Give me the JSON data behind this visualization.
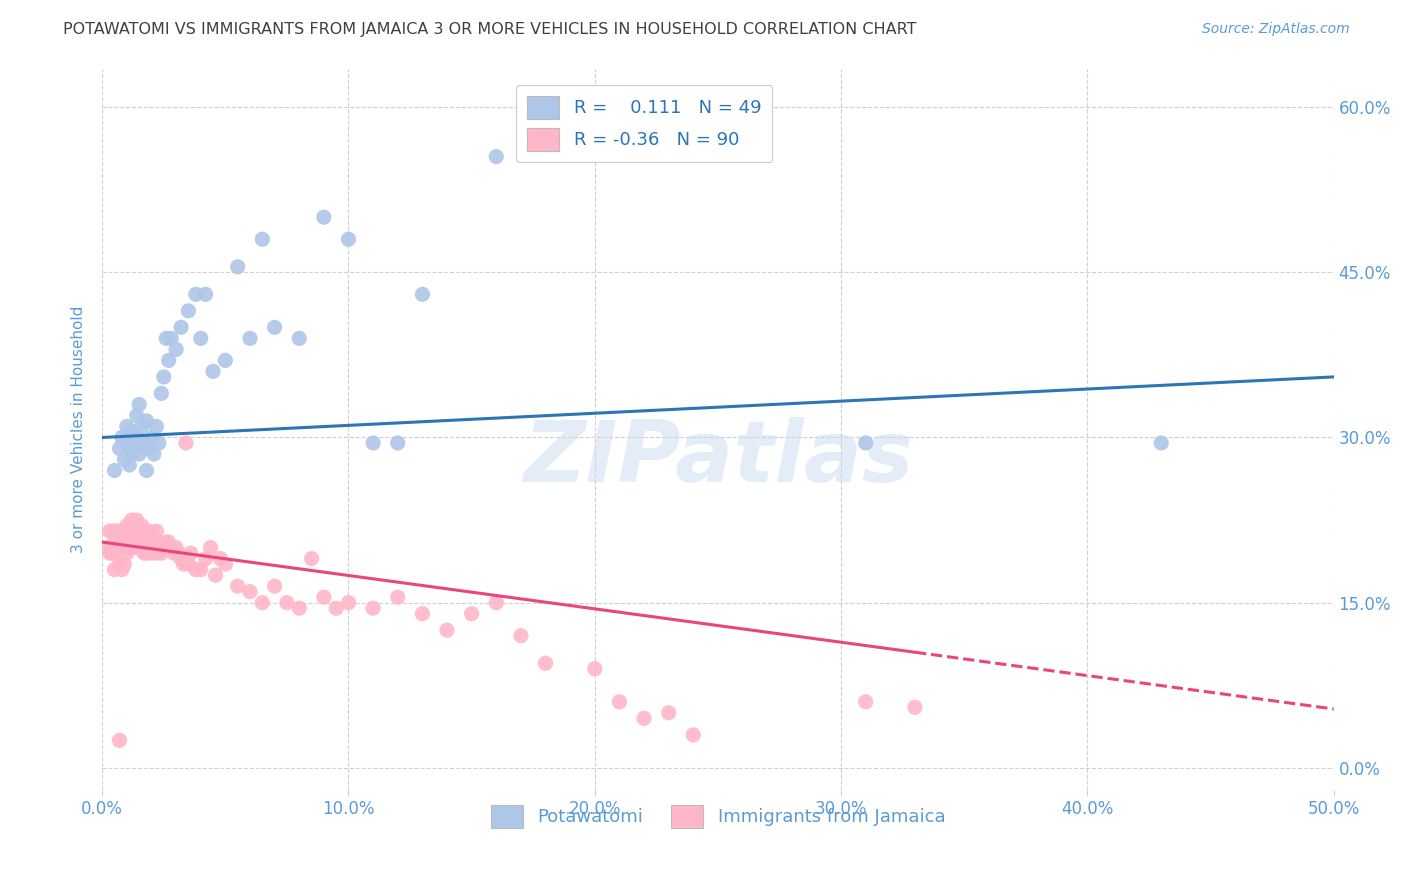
{
  "title": "POTAWATOMI VS IMMIGRANTS FROM JAMAICA 3 OR MORE VEHICLES IN HOUSEHOLD CORRELATION CHART",
  "source": "Source: ZipAtlas.com",
  "xlabel_ticks": [
    "0.0%",
    "10.0%",
    "20.0%",
    "30.0%",
    "40.0%",
    "50.0%"
  ],
  "ylabel_ticks": [
    "0.0%",
    "15.0%",
    "30.0%",
    "45.0%",
    "60.0%"
  ],
  "xmin": 0.0,
  "xmax": 0.5,
  "ymin": -0.02,
  "ymax": 0.635,
  "ylabel": "3 or more Vehicles in Household",
  "legend_label1": "Potawatomi",
  "legend_label2": "Immigrants from Jamaica",
  "R1": 0.111,
  "N1": 49,
  "R2": -0.36,
  "N2": 90,
  "blue_scatter_x": [
    0.005,
    0.007,
    0.008,
    0.009,
    0.01,
    0.01,
    0.011,
    0.012,
    0.012,
    0.013,
    0.014,
    0.014,
    0.015,
    0.015,
    0.016,
    0.017,
    0.018,
    0.018,
    0.019,
    0.02,
    0.021,
    0.022,
    0.023,
    0.024,
    0.025,
    0.026,
    0.027,
    0.028,
    0.03,
    0.032,
    0.035,
    0.038,
    0.04,
    0.042,
    0.045,
    0.05,
    0.055,
    0.06,
    0.065,
    0.07,
    0.08,
    0.09,
    0.1,
    0.11,
    0.12,
    0.13,
    0.16,
    0.31,
    0.43
  ],
  "blue_scatter_y": [
    0.27,
    0.29,
    0.3,
    0.28,
    0.31,
    0.295,
    0.275,
    0.305,
    0.285,
    0.29,
    0.32,
    0.3,
    0.33,
    0.285,
    0.31,
    0.295,
    0.27,
    0.315,
    0.29,
    0.3,
    0.285,
    0.31,
    0.295,
    0.34,
    0.355,
    0.39,
    0.37,
    0.39,
    0.38,
    0.4,
    0.415,
    0.43,
    0.39,
    0.43,
    0.36,
    0.37,
    0.455,
    0.39,
    0.48,
    0.4,
    0.39,
    0.5,
    0.48,
    0.295,
    0.295,
    0.43,
    0.555,
    0.295,
    0.295
  ],
  "pink_scatter_x": [
    0.002,
    0.003,
    0.003,
    0.004,
    0.004,
    0.005,
    0.005,
    0.005,
    0.006,
    0.006,
    0.007,
    0.007,
    0.007,
    0.008,
    0.008,
    0.008,
    0.009,
    0.009,
    0.01,
    0.01,
    0.01,
    0.011,
    0.011,
    0.012,
    0.012,
    0.013,
    0.013,
    0.014,
    0.014,
    0.015,
    0.015,
    0.016,
    0.016,
    0.017,
    0.017,
    0.018,
    0.018,
    0.019,
    0.019,
    0.02,
    0.02,
    0.021,
    0.022,
    0.022,
    0.023,
    0.024,
    0.025,
    0.026,
    0.027,
    0.028,
    0.029,
    0.03,
    0.031,
    0.032,
    0.033,
    0.034,
    0.035,
    0.036,
    0.038,
    0.04,
    0.042,
    0.044,
    0.046,
    0.048,
    0.05,
    0.055,
    0.06,
    0.065,
    0.07,
    0.075,
    0.08,
    0.085,
    0.09,
    0.095,
    0.1,
    0.11,
    0.12,
    0.13,
    0.14,
    0.15,
    0.16,
    0.17,
    0.18,
    0.2,
    0.21,
    0.22,
    0.23,
    0.24,
    0.31,
    0.33
  ],
  "pink_scatter_y": [
    0.2,
    0.195,
    0.215,
    0.195,
    0.215,
    0.18,
    0.205,
    0.215,
    0.195,
    0.215,
    0.025,
    0.185,
    0.2,
    0.18,
    0.2,
    0.215,
    0.185,
    0.21,
    0.195,
    0.21,
    0.22,
    0.2,
    0.215,
    0.215,
    0.225,
    0.21,
    0.215,
    0.2,
    0.225,
    0.2,
    0.21,
    0.22,
    0.21,
    0.195,
    0.215,
    0.195,
    0.21,
    0.2,
    0.215,
    0.195,
    0.205,
    0.2,
    0.195,
    0.215,
    0.205,
    0.195,
    0.2,
    0.205,
    0.205,
    0.2,
    0.195,
    0.2,
    0.195,
    0.19,
    0.185,
    0.295,
    0.185,
    0.195,
    0.18,
    0.18,
    0.19,
    0.2,
    0.175,
    0.19,
    0.185,
    0.165,
    0.16,
    0.15,
    0.165,
    0.15,
    0.145,
    0.19,
    0.155,
    0.145,
    0.15,
    0.145,
    0.155,
    0.14,
    0.125,
    0.14,
    0.15,
    0.12,
    0.095,
    0.09,
    0.06,
    0.045,
    0.05,
    0.03,
    0.06,
    0.055
  ],
  "blue_color": "#aec6e8",
  "pink_color": "#ffb6c8",
  "blue_line_color": "#2e75b6",
  "pink_line_color": "#e8467c",
  "watermark": "ZIPatlas",
  "grid_color": "#d0d0d0",
  "background_color": "#ffffff",
  "title_color": "#404040",
  "tick_color": "#5b9bd5"
}
